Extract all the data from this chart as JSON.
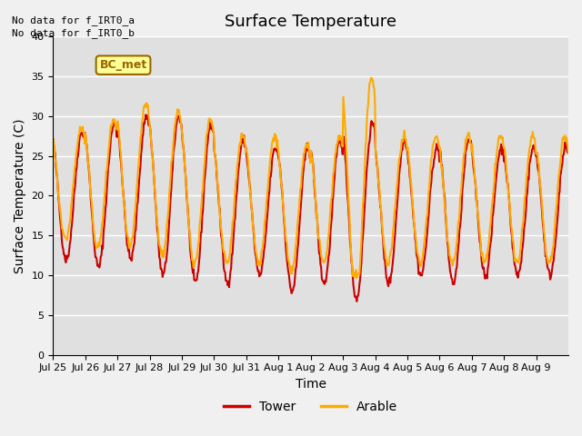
{
  "title": "Surface Temperature",
  "ylabel": "Surface Temperature (C)",
  "xlabel": "Time",
  "xlim_labels": [
    "Jul 25",
    "Jul 26",
    "Jul 27",
    "Jul 28",
    "Jul 29",
    "Jul 30",
    "Jul 31",
    "Aug 1",
    "Aug 2",
    "Aug 3",
    "Aug 4",
    "Aug 5",
    "Aug 6",
    "Aug 7",
    "Aug 8",
    "Aug 9"
  ],
  "ylim": [
    0,
    40
  ],
  "yticks": [
    0,
    5,
    10,
    15,
    20,
    25,
    30,
    35,
    40
  ],
  "no_data_text": [
    "No data for f_IRT0_a",
    "No data for f_IRT0_b"
  ],
  "bc_met_label": "BC_met",
  "legend_entries": [
    "Tower",
    "Arable"
  ],
  "legend_colors": [
    "#cc0000",
    "#ffaa00"
  ],
  "tower_color": "#cc0000",
  "arable_color": "#ffaa00",
  "background_color": "#e0e0e0",
  "grid_color": "#ffffff",
  "bc_met_bg": "#ffff99",
  "bc_met_border": "#996600",
  "title_fontsize": 13,
  "axis_label_fontsize": 10,
  "tick_fontsize": 8,
  "note_fontsize": 8,
  "line_width": 1.5,
  "n_days": 16
}
